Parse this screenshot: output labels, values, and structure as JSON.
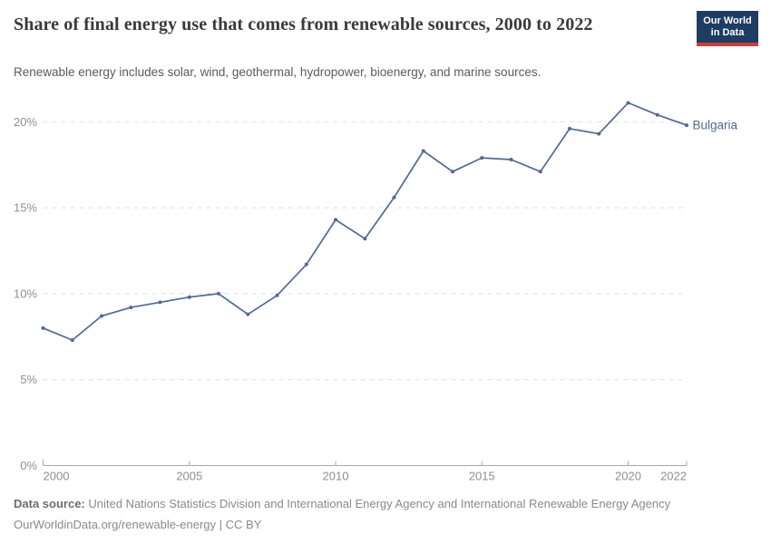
{
  "header": {
    "title": "Share of final energy use that comes from renewable sources, 2000 to 2022",
    "subtitle": "Renewable energy includes solar, wind, geothermal, hydropower, bioenergy, and marine sources.",
    "logo_line1": "Our World",
    "logo_line2": "in Data"
  },
  "chart_data": {
    "type": "line",
    "title": "Share of final energy use that comes from renewable sources, 2000 to 2022",
    "x": [
      2000,
      2001,
      2002,
      2003,
      2004,
      2005,
      2006,
      2007,
      2008,
      2009,
      2010,
      2011,
      2012,
      2013,
      2014,
      2015,
      2016,
      2017,
      2018,
      2019,
      2020,
      2021,
      2022
    ],
    "series": [
      {
        "name": "Bulgaria",
        "values": [
          8.0,
          7.3,
          8.7,
          9.2,
          9.5,
          9.8,
          10.0,
          8.8,
          9.9,
          11.7,
          14.3,
          13.2,
          15.6,
          18.3,
          17.1,
          17.9,
          17.8,
          17.1,
          19.6,
          19.3,
          21.1,
          20.4,
          19.8
        ]
      }
    ],
    "xlabel": "",
    "ylabel": "",
    "xlim": [
      2000,
      2022
    ],
    "ylim": [
      0,
      21.6
    ],
    "xticks": [
      2000,
      2005,
      2010,
      2015,
      2020,
      2022
    ],
    "yticks": [
      0,
      5,
      10,
      15,
      20
    ],
    "ytick_suffix": "%",
    "grid": "horizontal-dashed",
    "legend_position": "end-of-line-label"
  },
  "footer": {
    "datasource_label": "Data source:",
    "datasource_value": "United Nations Statistics Division and International Energy Agency and International Renewable Energy Agency",
    "citation": "OurWorldinData.org/renewable-energy | CC BY"
  },
  "colors": {
    "line": "#4c6a9c",
    "grid": "#dfdfdf",
    "axis": "#a8a8a8",
    "tick_label": "#8f8f8f",
    "title": "#3a3a3a",
    "subtitle": "#5b5b5b",
    "footer_text": "#8a8a8a",
    "logo_bg": "#1d3d63",
    "logo_stripe": "#cf3e36"
  }
}
